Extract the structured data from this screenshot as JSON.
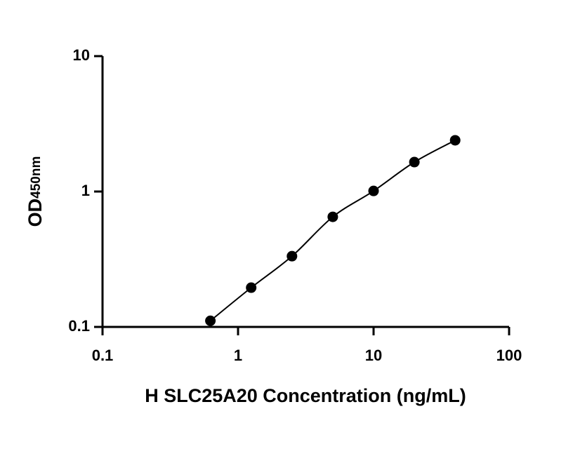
{
  "chart_data": {
    "type": "scatter",
    "xlabel": "H SLC25A20 Concentration (ng/mL)",
    "ylabel": {
      "main": "OD",
      "sub": "450nm"
    },
    "x": [
      0.625,
      1.25,
      2.5,
      5,
      10,
      20,
      40
    ],
    "values": [
      0.111,
      0.195,
      0.333,
      0.65,
      1.01,
      1.65,
      2.39
    ],
    "color": "#000000",
    "xscale": "log",
    "yscale": "log",
    "xlim": [
      0.1,
      100
    ],
    "xticks": [
      0.1,
      1,
      10,
      100
    ],
    "ylim": [
      0.1,
      10
    ],
    "yticks": [
      0.1,
      1,
      10
    ],
    "fit_line": true
  }
}
